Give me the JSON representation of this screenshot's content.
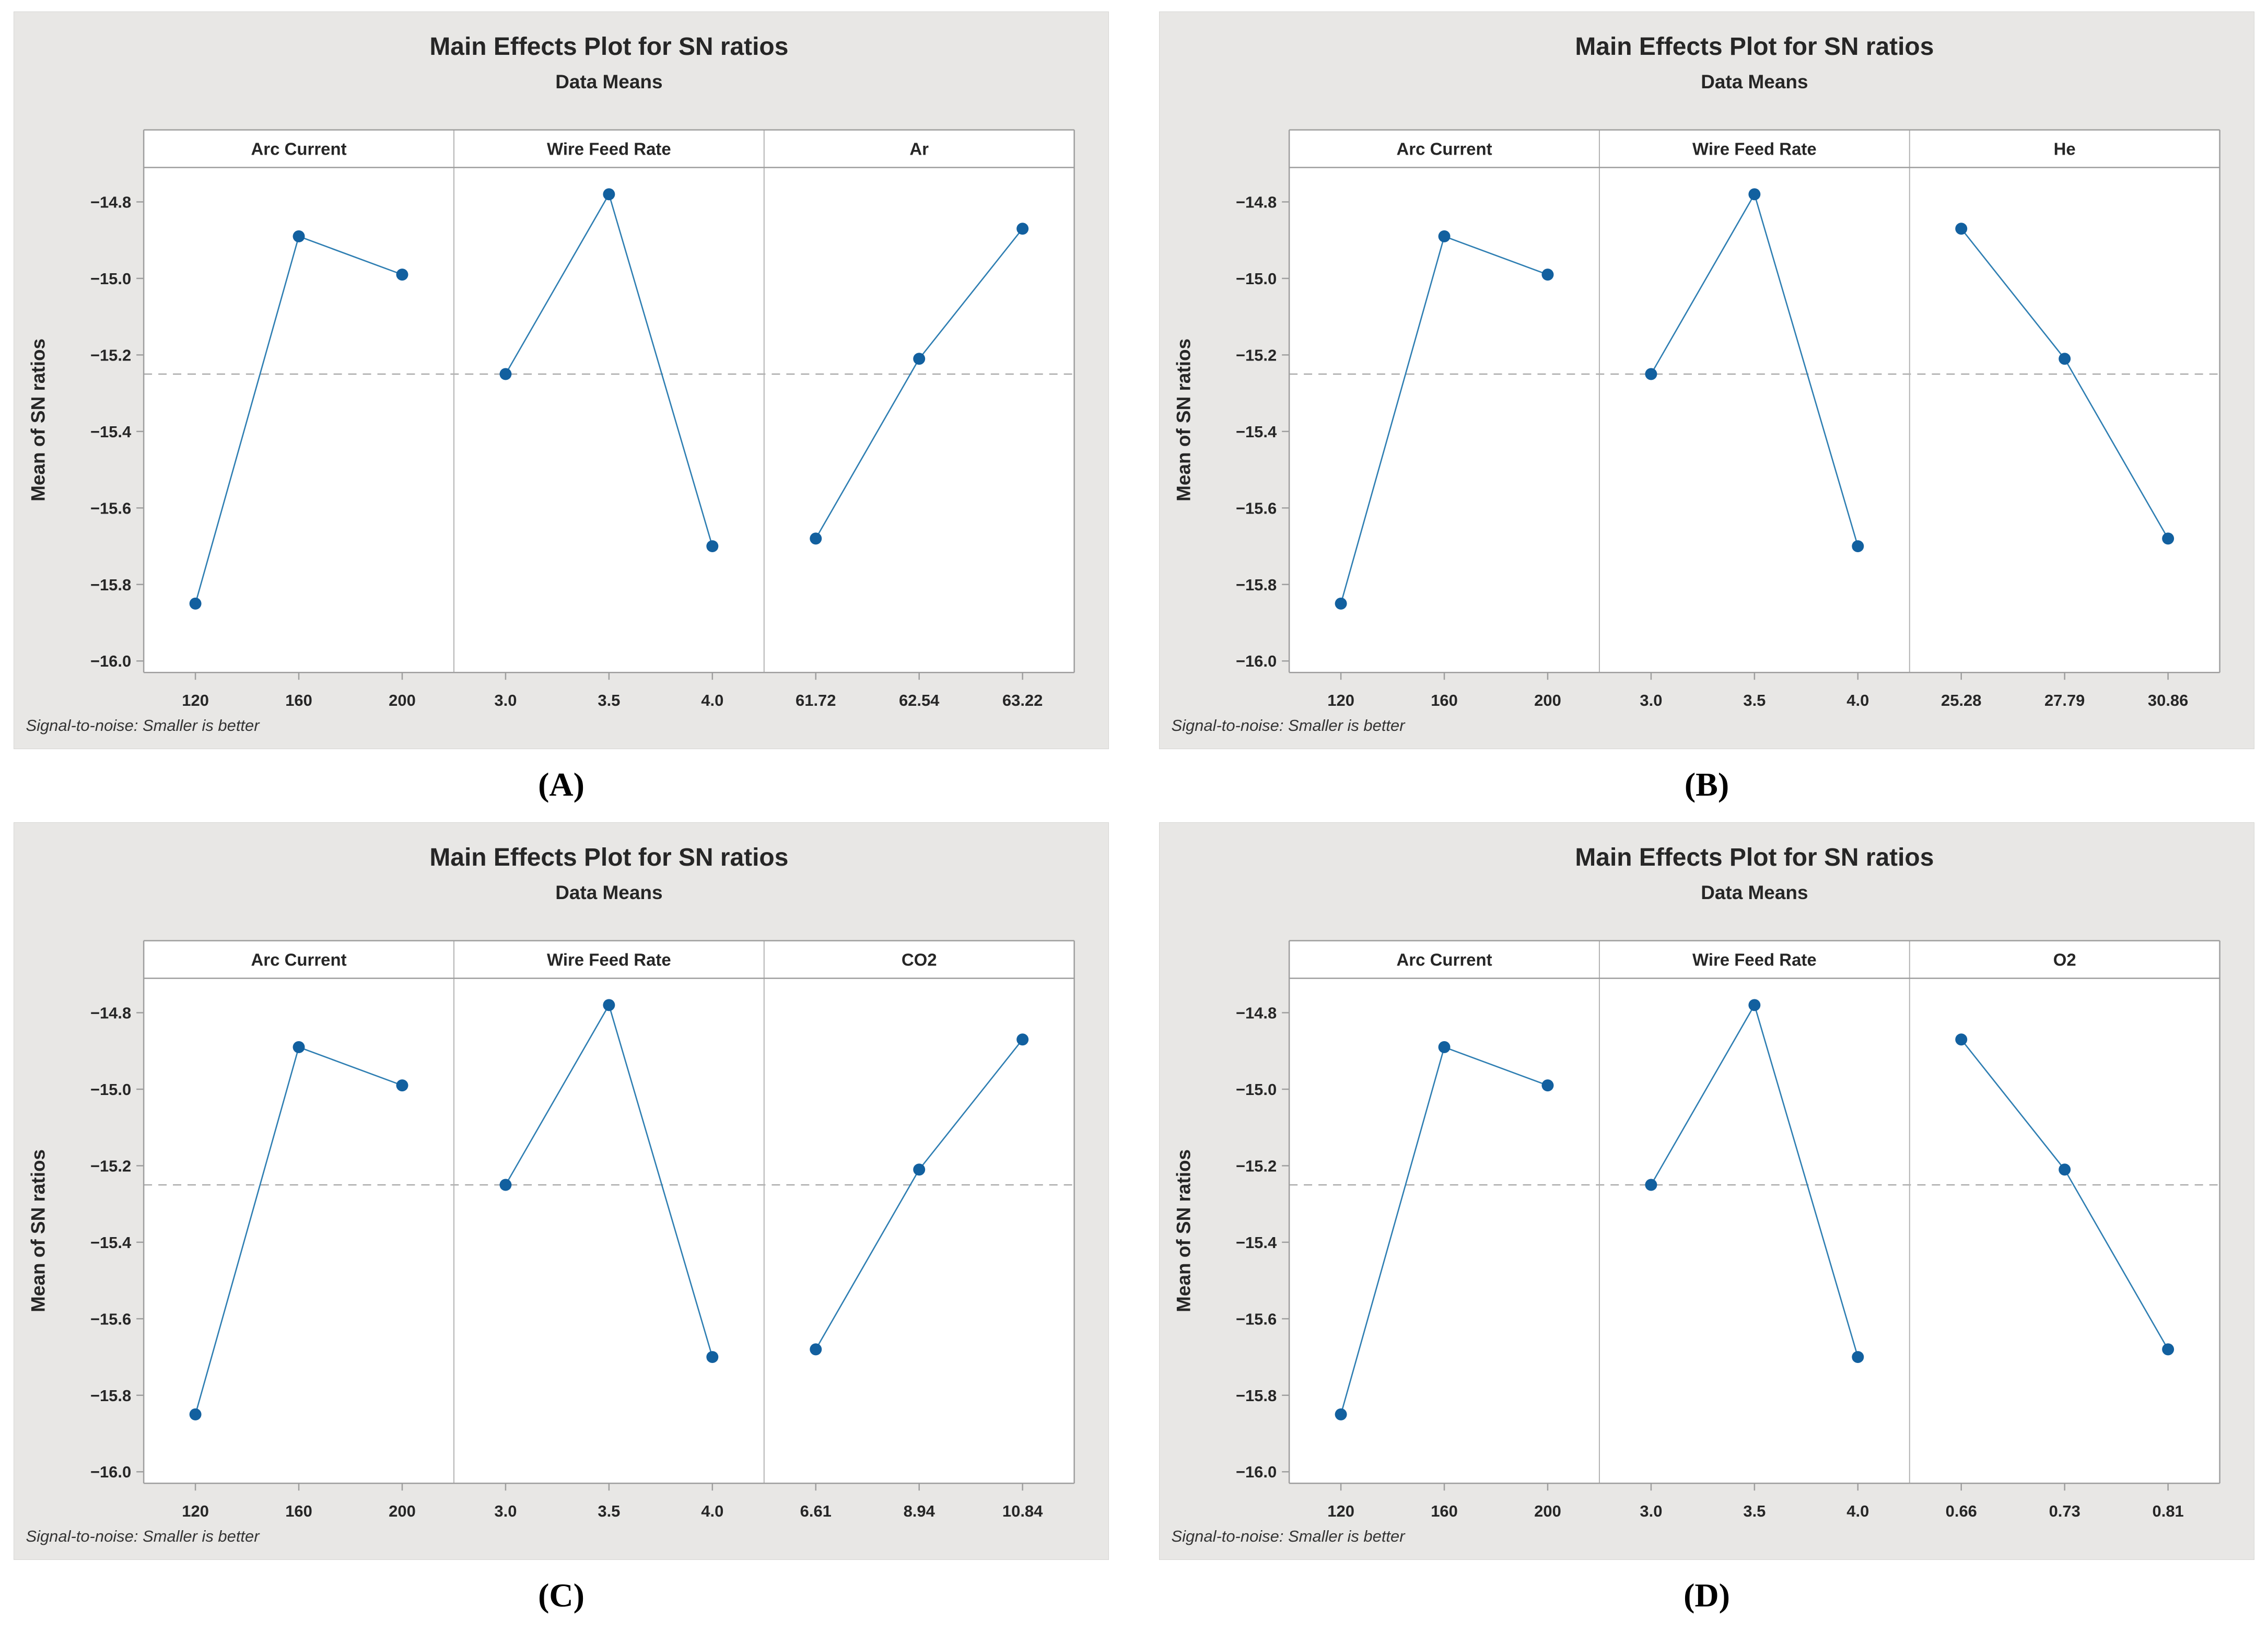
{
  "figure": {
    "plots": [
      {
        "caption": "(A)"
      },
      {
        "caption": "(B)"
      },
      {
        "caption": "(C)"
      },
      {
        "caption": "(D)"
      }
    ]
  },
  "chart_data": [
    {
      "type": "line",
      "title": "Main Effects Plot for SN ratios",
      "subtitle": "Data Means",
      "ylabel": "Mean of SN ratios",
      "footnote": "Signal-to-noise: Smaller is better",
      "ylim": [
        -16.03,
        -14.71
      ],
      "yticks": [
        {
          "v": -14.8,
          "label": "−14.8"
        },
        {
          "v": -15.0,
          "label": "−15.0"
        },
        {
          "v": -15.2,
          "label": "−15.2"
        },
        {
          "v": -15.4,
          "label": "−15.4"
        },
        {
          "v": -15.6,
          "label": "−15.6"
        },
        {
          "v": -15.8,
          "label": "−15.8"
        },
        {
          "v": -16.0,
          "label": "−16.0"
        }
      ],
      "reference_line": -15.25,
      "grid": false,
      "legend": "none",
      "panels": [
        {
          "label": "Arc Current",
          "categories": [
            "120",
            "160",
            "200"
          ],
          "values": [
            -15.85,
            -14.89,
            -14.99
          ]
        },
        {
          "label": "Wire Feed Rate",
          "categories": [
            "3.0",
            "3.5",
            "4.0"
          ],
          "values": [
            -15.25,
            -14.78,
            -15.7
          ]
        },
        {
          "label": "Ar",
          "categories": [
            "61.72",
            "62.54",
            "63.22"
          ],
          "values": [
            -15.68,
            -15.21,
            -14.87
          ]
        }
      ],
      "colors": {
        "marker": "#12609f",
        "line": "#2e7eb2",
        "frame": "#9e9e9e",
        "separator": "#b3b3b3",
        "reference": "#a8a8a8",
        "background": "#e8e7e5",
        "panel": "#ffffff",
        "text": "#262626"
      }
    },
    {
      "type": "line",
      "title": "Main Effects Plot for SN ratios",
      "subtitle": "Data Means",
      "ylabel": "Mean of SN ratios",
      "footnote": "Signal-to-noise: Smaller is better",
      "ylim": [
        -16.03,
        -14.71
      ],
      "yticks": [
        {
          "v": -14.8,
          "label": "−14.8"
        },
        {
          "v": -15.0,
          "label": "−15.0"
        },
        {
          "v": -15.2,
          "label": "−15.2"
        },
        {
          "v": -15.4,
          "label": "−15.4"
        },
        {
          "v": -15.6,
          "label": "−15.6"
        },
        {
          "v": -15.8,
          "label": "−15.8"
        },
        {
          "v": -16.0,
          "label": "−16.0"
        }
      ],
      "reference_line": -15.25,
      "grid": false,
      "legend": "none",
      "panels": [
        {
          "label": "Arc Current",
          "categories": [
            "120",
            "160",
            "200"
          ],
          "values": [
            -15.85,
            -14.89,
            -14.99
          ]
        },
        {
          "label": "Wire Feed Rate",
          "categories": [
            "3.0",
            "3.5",
            "4.0"
          ],
          "values": [
            -15.25,
            -14.78,
            -15.7
          ]
        },
        {
          "label": "He",
          "categories": [
            "25.28",
            "27.79",
            "30.86"
          ],
          "values": [
            -14.87,
            -15.21,
            -15.68
          ]
        }
      ],
      "colors": {
        "marker": "#12609f",
        "line": "#2e7eb2",
        "frame": "#9e9e9e",
        "separator": "#b3b3b3",
        "reference": "#a8a8a8",
        "background": "#e8e7e5",
        "panel": "#ffffff",
        "text": "#262626"
      }
    },
    {
      "type": "line",
      "title": "Main Effects Plot for SN ratios",
      "subtitle": "Data Means",
      "ylabel": "Mean of SN ratios",
      "footnote": "Signal-to-noise: Smaller is better",
      "ylim": [
        -16.03,
        -14.71
      ],
      "yticks": [
        {
          "v": -14.8,
          "label": "−14.8"
        },
        {
          "v": -15.0,
          "label": "−15.0"
        },
        {
          "v": -15.2,
          "label": "−15.2"
        },
        {
          "v": -15.4,
          "label": "−15.4"
        },
        {
          "v": -15.6,
          "label": "−15.6"
        },
        {
          "v": -15.8,
          "label": "−15.8"
        },
        {
          "v": -16.0,
          "label": "−16.0"
        }
      ],
      "reference_line": -15.25,
      "grid": false,
      "legend": "none",
      "panels": [
        {
          "label": "Arc Current",
          "categories": [
            "120",
            "160",
            "200"
          ],
          "values": [
            -15.85,
            -14.89,
            -14.99
          ]
        },
        {
          "label": "Wire Feed Rate",
          "categories": [
            "3.0",
            "3.5",
            "4.0"
          ],
          "values": [
            -15.25,
            -14.78,
            -15.7
          ]
        },
        {
          "label": "CO2",
          "categories": [
            "6.61",
            "8.94",
            "10.84"
          ],
          "values": [
            -15.68,
            -15.21,
            -14.87
          ]
        }
      ],
      "colors": {
        "marker": "#12609f",
        "line": "#2e7eb2",
        "frame": "#9e9e9e",
        "separator": "#b3b3b3",
        "reference": "#a8a8a8",
        "background": "#e8e7e5",
        "panel": "#ffffff",
        "text": "#262626"
      }
    },
    {
      "type": "line",
      "title": "Main Effects Plot for SN ratios",
      "subtitle": "Data Means",
      "ylabel": "Mean of SN ratios",
      "footnote": "Signal-to-noise: Smaller is better",
      "ylim": [
        -16.03,
        -14.71
      ],
      "yticks": [
        {
          "v": -14.8,
          "label": "−14.8"
        },
        {
          "v": -15.0,
          "label": "−15.0"
        },
        {
          "v": -15.2,
          "label": "−15.2"
        },
        {
          "v": -15.4,
          "label": "−15.4"
        },
        {
          "v": -15.6,
          "label": "−15.6"
        },
        {
          "v": -15.8,
          "label": "−15.8"
        },
        {
          "v": -16.0,
          "label": "−16.0"
        }
      ],
      "reference_line": -15.25,
      "grid": false,
      "legend": "none",
      "panels": [
        {
          "label": "Arc Current",
          "categories": [
            "120",
            "160",
            "200"
          ],
          "values": [
            -15.85,
            -14.89,
            -14.99
          ]
        },
        {
          "label": "Wire Feed Rate",
          "categories": [
            "3.0",
            "3.5",
            "4.0"
          ],
          "values": [
            -15.25,
            -14.78,
            -15.7
          ]
        },
        {
          "label": "O2",
          "categories": [
            "0.66",
            "0.73",
            "0.81"
          ],
          "values": [
            -14.87,
            -15.21,
            -15.68
          ]
        }
      ],
      "colors": {
        "marker": "#12609f",
        "line": "#2e7eb2",
        "frame": "#9e9e9e",
        "separator": "#b3b3b3",
        "reference": "#a8a8a8",
        "background": "#e8e7e5",
        "panel": "#ffffff",
        "text": "#262626"
      }
    }
  ]
}
